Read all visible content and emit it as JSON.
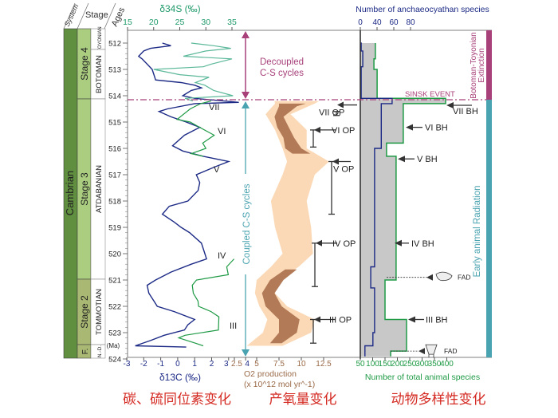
{
  "columns": {
    "system_header": "System",
    "stage_header": "Stage",
    "ages_header": "Ages",
    "system": "Cambrian",
    "stages": [
      "Stage 4",
      "Stage 3",
      "Stage 2",
      "F."
    ],
    "substages": [
      "TOYONIAN",
      "BOTOMAN",
      "ATDABANIAN",
      "TOMMOTIAN",
      "N.-D."
    ],
    "age_unit": "(Ma)",
    "colors": {
      "system": "#5f8f3f",
      "stage": "#aacd80",
      "stage2": "#a9b873"
    }
  },
  "annotations": {
    "decoupled": [
      "Decoupled",
      "C-S cycles"
    ],
    "coupled": "Coupled C-S cycles",
    "sinsk": "SINSK EVENT",
    "extinction": [
      "Botoman-Toyonian",
      "Extinction"
    ],
    "radiation": "Early animal Radiation",
    "fad": "FAD",
    "colors": {
      "magenta": "#a8407a",
      "teal": "#4aa3b0"
    }
  },
  "captions": [
    "碳、硫同位素变化",
    "产氧量变化",
    "动物多样性变化"
  ],
  "chart_data": [
    {
      "type": "line",
      "title": "",
      "ylabel": "Ages",
      "ylim": [
        511.5,
        524
      ],
      "y_ticks": [
        "512",
        "513",
        "514",
        "515",
        "516",
        "517",
        "518",
        "519",
        "520",
        "521",
        "522",
        "523",
        "524"
      ],
      "x_bottom": {
        "label": "δ13C (‰)",
        "ticks": [
          "-3",
          "-2",
          "-1",
          "0",
          "1",
          "2",
          "3",
          "4"
        ],
        "color": "#1c2a86"
      },
      "x_top": {
        "label": "δ34S (‰)",
        "ticks": [
          "15",
          "20",
          "25",
          "30",
          "35"
        ],
        "color": "#1f9a6a"
      },
      "series": [
        {
          "axis": "d13C",
          "color": "#1c2a86",
          "points": [
            [
              512.0,
              -0.9
            ],
            [
              512.1,
              -0.4
            ],
            [
              512.2,
              -1.6
            ],
            [
              512.3,
              -2.0
            ],
            [
              512.5,
              -2.3
            ],
            [
              512.6,
              -2.1
            ],
            [
              512.8,
              -1.8
            ],
            [
              513.0,
              -1.5
            ],
            [
              513.2,
              -1.4
            ],
            [
              513.4,
              -1.3
            ],
            [
              513.5,
              0.2
            ],
            [
              513.6,
              1.0
            ],
            [
              513.7,
              1.4
            ],
            [
              513.8,
              0.8
            ],
            [
              514.0,
              0.3
            ],
            [
              514.1,
              1.0
            ],
            [
              514.2,
              2.7
            ],
            [
              514.25,
              3.6
            ],
            [
              514.3,
              1.0
            ],
            [
              514.5,
              -0.6
            ],
            [
              514.6,
              -1.1
            ],
            [
              514.8,
              -0.4
            ],
            [
              515.0,
              0.5
            ],
            [
              515.2,
              1.3
            ],
            [
              515.5,
              0.4
            ],
            [
              515.9,
              -0.3
            ],
            [
              516.1,
              0.3
            ],
            [
              516.3,
              1.5
            ],
            [
              516.5,
              3.0
            ],
            [
              516.7,
              2.2
            ],
            [
              517.0,
              1.1
            ],
            [
              517.3,
              1.3
            ],
            [
              517.6,
              1.2
            ],
            [
              518.0,
              0.6
            ],
            [
              518.2,
              -0.5
            ],
            [
              518.5,
              -0.9
            ],
            [
              518.8,
              -0.2
            ],
            [
              519.0,
              0.2
            ],
            [
              519.2,
              0.7
            ],
            [
              519.6,
              1.4
            ],
            [
              520.0,
              1.6
            ],
            [
              520.2,
              1.7
            ],
            [
              520.4,
              0.8
            ],
            [
              520.7,
              -0.4
            ],
            [
              521.0,
              -1.3
            ],
            [
              521.2,
              -1.8
            ],
            [
              521.5,
              -1.7
            ],
            [
              521.8,
              -1.4
            ],
            [
              522.0,
              -1.2
            ],
            [
              522.2,
              -0.2
            ],
            [
              522.5,
              1.0
            ],
            [
              522.7,
              0.6
            ],
            [
              522.9,
              0.4
            ],
            [
              523.1,
              -0.8
            ],
            [
              523.3,
              -1.6
            ],
            [
              523.5,
              -2.5
            ],
            [
              523.55,
              0.5
            ]
          ]
        },
        {
          "axis": "d34S",
          "color": "#5cb89a",
          "points": [
            [
              512.0,
              27.2
            ],
            [
              512.1,
              31.5
            ],
            [
              512.2,
              34.8
            ],
            [
              512.3,
              30.0
            ],
            [
              512.5,
              25.7
            ],
            [
              512.6,
              35.0
            ],
            [
              512.8,
              31.0
            ],
            [
              512.9,
              29.5
            ],
            [
              513.0,
              20.0
            ],
            [
              513.2,
              25.0
            ],
            [
              513.3,
              30.6
            ],
            [
              513.5,
              28.0
            ],
            [
              513.6,
              29.8
            ],
            [
              513.8,
              31.5
            ],
            [
              514.0,
              35.2
            ],
            [
              514.1,
              26.0
            ],
            [
              514.2,
              27.5
            ]
          ]
        },
        {
          "axis": "d34S",
          "color": "#1e9a45",
          "points": [
            [
              514.2,
              31.0
            ],
            [
              514.3,
              29.0
            ],
            [
              514.5,
              27.0
            ],
            [
              514.9,
              24.5
            ],
            [
              515.0,
              27.0
            ],
            [
              515.2,
              28.8
            ],
            [
              515.5,
              31.6
            ],
            [
              515.8,
              29.4
            ],
            [
              516.0,
              30.0
            ],
            [
              516.2,
              27.2
            ],
            [
              516.3,
              29.5
            ]
          ]
        },
        {
          "axis": "d34S",
          "color": "#1e9a45",
          "points": [
            [
              520.2,
              35.4
            ],
            [
              520.5,
              34.0
            ],
            [
              520.8,
              34.3
            ],
            [
              521.0,
              28.2
            ],
            [
              521.2,
              27.4
            ],
            [
              521.5,
              27.6
            ],
            [
              521.8,
              28.5
            ],
            [
              522.0,
              28.6
            ],
            [
              522.2,
              31.0
            ],
            [
              522.4,
              32.5
            ],
            [
              522.9,
              32.4
            ],
            [
              523.1,
              26.0
            ],
            [
              523.2,
              24.8
            ],
            [
              523.4,
              28.0
            ],
            [
              523.5,
              29.5
            ]
          ]
        }
      ],
      "labels": [
        "VII",
        "VI",
        "V",
        "IV",
        "III"
      ]
    },
    {
      "type": "area",
      "title": "",
      "xlabel": [
        "O2 production",
        "(x 10^12 mol yr^-1)"
      ],
      "x_ticks": [
        "2.5",
        "5",
        "7.5",
        "10",
        "12.5"
      ],
      "color_light": "#fbd9b6",
      "color_dark": "#b27a56",
      "range_light": [
        [
          514.2,
          7.0,
          12.0
        ],
        [
          514.3,
          7.05,
          11.5
        ],
        [
          514.7,
          6.0,
          8.8
        ],
        [
          515.3,
          7.05,
          10.6
        ],
        [
          516.0,
          7.9,
          10.6
        ],
        [
          516.5,
          8.4,
          13.1
        ],
        [
          517.0,
          7.9,
          11.5
        ],
        [
          518.0,
          6.6,
          10.6
        ],
        [
          519.0,
          7.05,
          11.1
        ],
        [
          520.0,
          7.9,
          11.3
        ],
        [
          520.5,
          6.6,
          9.7
        ],
        [
          521.0,
          5.0,
          7.5
        ],
        [
          521.5,
          4.8,
          7.05
        ],
        [
          522.0,
          5.3,
          8.4
        ],
        [
          522.5,
          6.2,
          11.5
        ],
        [
          523.0,
          5.7,
          11.1
        ],
        [
          523.5,
          3.9,
          7.9
        ]
      ],
      "range_dark": [
        [
          514.3,
          7.5,
          10.5
        ],
        [
          514.4,
          7.5,
          9.5
        ],
        [
          514.8,
          7.0,
          8.0
        ],
        [
          515.2,
          7.3,
          8.6
        ],
        [
          515.6,
          8.0,
          9.2
        ],
        [
          516.0,
          8.2,
          10.0
        ],
        [
          516.2,
          9.0,
          11.0
        ],
        null,
        [
          520.6,
          8.2,
          9.5
        ],
        [
          521.0,
          6.5,
          8.0
        ],
        [
          521.5,
          5.6,
          7.0
        ],
        [
          522.0,
          6.0,
          7.8
        ],
        [
          522.5,
          7.5,
          9.8
        ],
        [
          523.0,
          7.5,
          9.5
        ],
        [
          523.4,
          6.5,
          7.8
        ]
      ],
      "op_events": [
        {
          "label": "VII OP",
          "age": 514.5,
          "bar": [
            514.6,
            514.75
          ]
        },
        {
          "label": "VI OP",
          "age": 515.3,
          "bar": [
            515.3,
            515.95
          ]
        },
        {
          "label": "V OP",
          "age": 516.5,
          "bar": [
            516.5,
            518.5
          ]
        },
        {
          "label": "IV OP",
          "age": 519.6,
          "bar": [
            519.6,
            521.25
          ]
        },
        {
          "label": "III OP",
          "age": 522.5,
          "bar": [
            522.5,
            523.4
          ]
        }
      ]
    },
    {
      "type": "line",
      "title": "",
      "x_top": {
        "label": "Number of anchaeocyathan species",
        "ticks": [
          "0",
          "40",
          "60",
          "80"
        ],
        "color": "#1c2a86"
      },
      "x_bottom": {
        "label": "Number of total animal species",
        "ticks": [
          "50",
          "100",
          "150",
          "200",
          "250",
          "300",
          "350",
          "400"
        ],
        "color": "#1e9a45"
      },
      "total_species_steps": [
        [
          512.0,
          111
        ],
        [
          512.6,
          105
        ],
        [
          513.0,
          118
        ],
        [
          514.1,
          395
        ],
        [
          514.3,
          224
        ],
        [
          515.8,
          156
        ],
        [
          516.3,
          195
        ],
        [
          521.0,
          150
        ],
        [
          522.5,
          237
        ],
        [
          523.7,
          173
        ],
        [
          523.9,
          173
        ]
      ],
      "archaeocyathan_steps": [
        [
          512.0,
          2
        ],
        [
          512.3,
          6
        ],
        [
          512.9,
          2
        ],
        [
          514.1,
          58
        ],
        [
          514.3,
          45
        ],
        [
          516.0,
          34
        ],
        [
          520.5,
          25
        ],
        [
          521.3,
          34
        ],
        [
          523.0,
          30
        ],
        [
          523.5,
          11
        ],
        [
          523.9,
          11
        ]
      ],
      "bh_events": [
        {
          "label": "VII BH",
          "age": 514.2
        },
        {
          "label": "VI BH",
          "age": 515.2
        },
        {
          "label": "V BH",
          "age": 516.4
        },
        {
          "label": "IV BH",
          "age": 519.6
        },
        {
          "label": "III BH",
          "age": 522.5
        }
      ],
      "fad_ages": [
        520.9,
        523.7
      ],
      "fill_color": "#c8c8c8"
    }
  ]
}
